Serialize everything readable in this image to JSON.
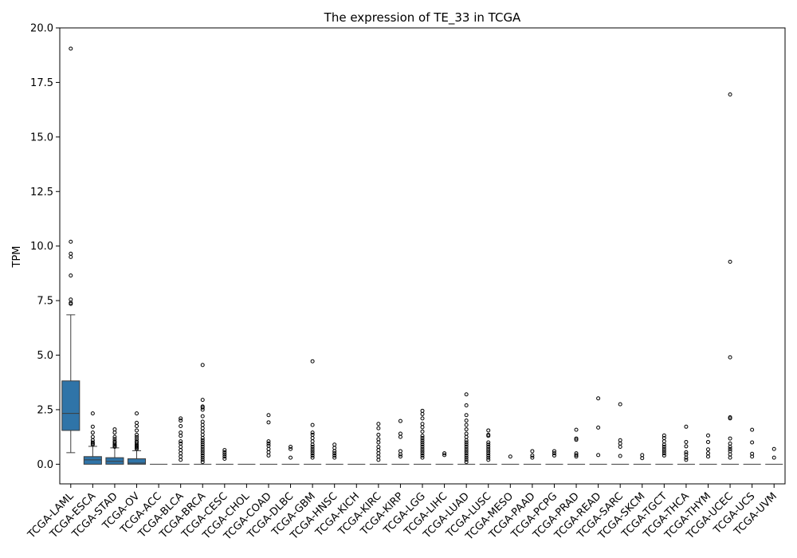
{
  "chart_data": {
    "type": "box",
    "title": "The expression of TE_33 in TCGA",
    "xlabel": "",
    "ylabel": "TPM",
    "ylim": [
      -0.9,
      20.0
    ],
    "yticks": [
      "0.0",
      "2.5",
      "5.0",
      "7.5",
      "10.0",
      "12.5",
      "15.0",
      "17.5",
      "20.0"
    ],
    "box_color": "#2f74a8",
    "categories": [
      "TCGA-LAML",
      "TCGA-ESCA",
      "TCGA-STAD",
      "TCGA-OV",
      "TCGA-ACC",
      "TCGA-BLCA",
      "TCGA-BRCA",
      "TCGA-CESC",
      "TCGA-CHOL",
      "TCGA-COAD",
      "TCGA-DLBC",
      "TCGA-GBM",
      "TCGA-HNSC",
      "TCGA-KICH",
      "TCGA-KIRC",
      "TCGA-KIRP",
      "TCGA-LGG",
      "TCGA-LIHC",
      "TCGA-LUAD",
      "TCGA-LUSC",
      "TCGA-MESO",
      "TCGA-PAAD",
      "TCGA-PCPG",
      "TCGA-PRAD",
      "TCGA-READ",
      "TCGA-SARC",
      "TCGA-SKCM",
      "TCGA-TGCT",
      "TCGA-THCA",
      "TCGA-THYM",
      "TCGA-UCEC",
      "TCGA-UCS",
      "TCGA-UVM"
    ],
    "boxes": [
      {
        "q1": 1.55,
        "median": 2.33,
        "q3": 3.82,
        "whislo": 0.53,
        "whishi": 6.85,
        "fliers": [
          19.05,
          10.2,
          9.65,
          9.5,
          8.65,
          7.55,
          7.4,
          7.35
        ]
      },
      {
        "q1": 0.0,
        "median": 0.2,
        "q3": 0.35,
        "whislo": 0.0,
        "whishi": 0.82,
        "fliers": [
          2.33,
          1.72,
          1.45,
          1.25,
          1.1,
          1.0,
          0.95,
          0.9
        ]
      },
      {
        "q1": 0.0,
        "median": 0.13,
        "q3": 0.3,
        "whislo": 0.0,
        "whishi": 0.75,
        "fliers": [
          1.6,
          1.45,
          1.25,
          1.15,
          1.05,
          0.98,
          0.9,
          0.85,
          0.8
        ]
      },
      {
        "q1": 0.0,
        "median": 0.05,
        "q3": 0.25,
        "whislo": 0.0,
        "whishi": 0.62,
        "fliers": [
          2.33,
          1.9,
          1.75,
          1.55,
          1.35,
          1.25,
          1.15,
          1.05,
          0.98,
          0.9,
          0.85,
          0.8,
          0.75,
          0.7
        ]
      },
      {
        "q1": 0.0,
        "median": 0.0,
        "q3": 0.0,
        "whislo": 0.0,
        "whishi": 0.0,
        "fliers": []
      },
      {
        "q1": 0.0,
        "median": 0.0,
        "q3": 0.0,
        "whislo": 0.0,
        "whishi": 0.0,
        "fliers": [
          2.1,
          2.0,
          1.75,
          1.45,
          1.3,
          1.05,
          0.95,
          0.8,
          0.65,
          0.5,
          0.35,
          0.2
        ]
      },
      {
        "q1": 0.0,
        "median": 0.0,
        "q3": 0.0,
        "whislo": 0.0,
        "whishi": 0.0,
        "fliers": [
          4.55,
          2.95,
          2.65,
          2.6,
          2.5,
          2.2,
          1.95,
          1.8,
          1.65,
          1.5,
          1.35,
          1.2,
          1.1,
          1.0,
          0.9,
          0.8,
          0.7,
          0.6,
          0.5,
          0.4,
          0.3,
          0.2,
          0.1
        ]
      },
      {
        "q1": 0.0,
        "median": 0.0,
        "q3": 0.0,
        "whislo": 0.0,
        "whishi": 0.0,
        "fliers": [
          0.65,
          0.55,
          0.45,
          0.35,
          0.25
        ]
      },
      {
        "q1": 0.0,
        "median": 0.0,
        "q3": 0.0,
        "whislo": 0.0,
        "whishi": 0.0,
        "fliers": []
      },
      {
        "q1": 0.0,
        "median": 0.0,
        "q3": 0.0,
        "whislo": 0.0,
        "whishi": 0.0,
        "fliers": [
          2.25,
          1.92,
          1.05,
          0.95,
          0.85,
          0.7,
          0.55,
          0.4
        ]
      },
      {
        "q1": 0.0,
        "median": 0.0,
        "q3": 0.0,
        "whislo": 0.0,
        "whishi": 0.0,
        "fliers": [
          0.8,
          0.7,
          0.3
        ]
      },
      {
        "q1": 0.0,
        "median": 0.0,
        "q3": 0.0,
        "whislo": 0.0,
        "whishi": 0.0,
        "fliers": [
          4.72,
          1.8,
          1.45,
          1.35,
          1.2,
          1.05,
          0.9,
          0.8,
          0.7,
          0.6,
          0.5,
          0.4,
          0.3
        ]
      },
      {
        "q1": 0.0,
        "median": 0.0,
        "q3": 0.0,
        "whislo": 0.0,
        "whishi": 0.0,
        "fliers": [
          0.9,
          0.75,
          0.6,
          0.5,
          0.4,
          0.3
        ]
      },
      {
        "q1": 0.0,
        "median": 0.0,
        "q3": 0.0,
        "whislo": 0.0,
        "whishi": 0.0,
        "fliers": []
      },
      {
        "q1": 0.0,
        "median": 0.0,
        "q3": 0.0,
        "whislo": 0.0,
        "whishi": 0.0,
        "fliers": [
          1.85,
          1.65,
          1.35,
          1.15,
          1.0,
          0.8,
          0.65,
          0.5,
          0.35,
          0.2
        ]
      },
      {
        "q1": 0.0,
        "median": 0.0,
        "q3": 0.0,
        "whislo": 0.0,
        "whishi": 0.0,
        "fliers": [
          1.98,
          1.4,
          1.25,
          0.6,
          0.45,
          0.35
        ]
      },
      {
        "q1": 0.0,
        "median": 0.0,
        "q3": 0.0,
        "whislo": 0.0,
        "whishi": 0.0,
        "fliers": [
          2.45,
          2.3,
          2.1,
          1.85,
          1.7,
          1.5,
          1.3,
          1.2,
          1.1,
          1.0,
          0.9,
          0.8,
          0.7,
          0.6,
          0.5,
          0.4,
          0.3
        ]
      },
      {
        "q1": 0.0,
        "median": 0.0,
        "q3": 0.0,
        "whislo": 0.0,
        "whishi": 0.0,
        "fliers": [
          0.5,
          0.42
        ]
      },
      {
        "q1": 0.0,
        "median": 0.0,
        "q3": 0.0,
        "whislo": 0.0,
        "whishi": 0.0,
        "fliers": [
          3.2,
          2.7,
          2.25,
          2.0,
          1.8,
          1.6,
          1.4,
          1.25,
          1.1,
          1.0,
          0.9,
          0.8,
          0.7,
          0.6,
          0.5,
          0.4,
          0.3,
          0.2,
          0.1
        ]
      },
      {
        "q1": 0.0,
        "median": 0.0,
        "q3": 0.0,
        "whislo": 0.0,
        "whishi": 0.0,
        "fliers": [
          1.55,
          1.35,
          1.3,
          1.0,
          0.9,
          0.8,
          0.7,
          0.6,
          0.5,
          0.4,
          0.3,
          0.2
        ]
      },
      {
        "q1": 0.0,
        "median": 0.0,
        "q3": 0.0,
        "whislo": 0.0,
        "whishi": 0.0,
        "fliers": [
          0.35
        ]
      },
      {
        "q1": 0.0,
        "median": 0.0,
        "q3": 0.0,
        "whislo": 0.0,
        "whishi": 0.0,
        "fliers": [
          0.6,
          0.4,
          0.3
        ]
      },
      {
        "q1": 0.0,
        "median": 0.0,
        "q3": 0.0,
        "whislo": 0.0,
        "whishi": 0.0,
        "fliers": [
          0.6,
          0.5,
          0.4
        ]
      },
      {
        "q1": 0.0,
        "median": 0.0,
        "q3": 0.0,
        "whislo": 0.0,
        "whishi": 0.0,
        "fliers": [
          1.58,
          1.18,
          1.12,
          0.5,
          0.42,
          0.35
        ]
      },
      {
        "q1": 0.0,
        "median": 0.0,
        "q3": 0.0,
        "whislo": 0.0,
        "whishi": 0.0,
        "fliers": [
          3.02,
          1.68,
          0.42
        ]
      },
      {
        "q1": 0.0,
        "median": 0.0,
        "q3": 0.0,
        "whislo": 0.0,
        "whishi": 0.0,
        "fliers": [
          2.75,
          1.1,
          0.95,
          0.8,
          0.38
        ]
      },
      {
        "q1": 0.0,
        "median": 0.0,
        "q3": 0.0,
        "whislo": 0.0,
        "whishi": 0.0,
        "fliers": [
          0.42,
          0.28
        ]
      },
      {
        "q1": 0.0,
        "median": 0.0,
        "q3": 0.0,
        "whislo": 0.0,
        "whishi": 0.0,
        "fliers": [
          1.32,
          1.2,
          1.05,
          0.9,
          0.8,
          0.7,
          0.6,
          0.5,
          0.4
        ]
      },
      {
        "q1": 0.0,
        "median": 0.0,
        "q3": 0.0,
        "whislo": 0.0,
        "whishi": 0.0,
        "fliers": [
          1.72,
          1.02,
          0.82,
          0.55,
          0.45,
          0.3,
          0.2
        ]
      },
      {
        "q1": 0.0,
        "median": 0.0,
        "q3": 0.0,
        "whislo": 0.0,
        "whishi": 0.0,
        "fliers": [
          1.32,
          1.02,
          0.68,
          0.5,
          0.35
        ]
      },
      {
        "q1": 0.0,
        "median": 0.0,
        "q3": 0.0,
        "whislo": 0.0,
        "whishi": 0.0,
        "fliers": [
          16.95,
          9.28,
          4.9,
          2.15,
          2.1,
          1.18,
          0.95,
          0.8,
          0.7,
          0.6,
          0.45,
          0.3
        ]
      },
      {
        "q1": 0.0,
        "median": 0.0,
        "q3": 0.0,
        "whislo": 0.0,
        "whishi": 0.0,
        "fliers": [
          1.58,
          1.0,
          0.48,
          0.35
        ]
      },
      {
        "q1": 0.0,
        "median": 0.0,
        "q3": 0.0,
        "whislo": 0.0,
        "whishi": 0.0,
        "fliers": [
          0.7,
          0.3
        ]
      }
    ],
    "grid": false,
    "legend": "none"
  }
}
